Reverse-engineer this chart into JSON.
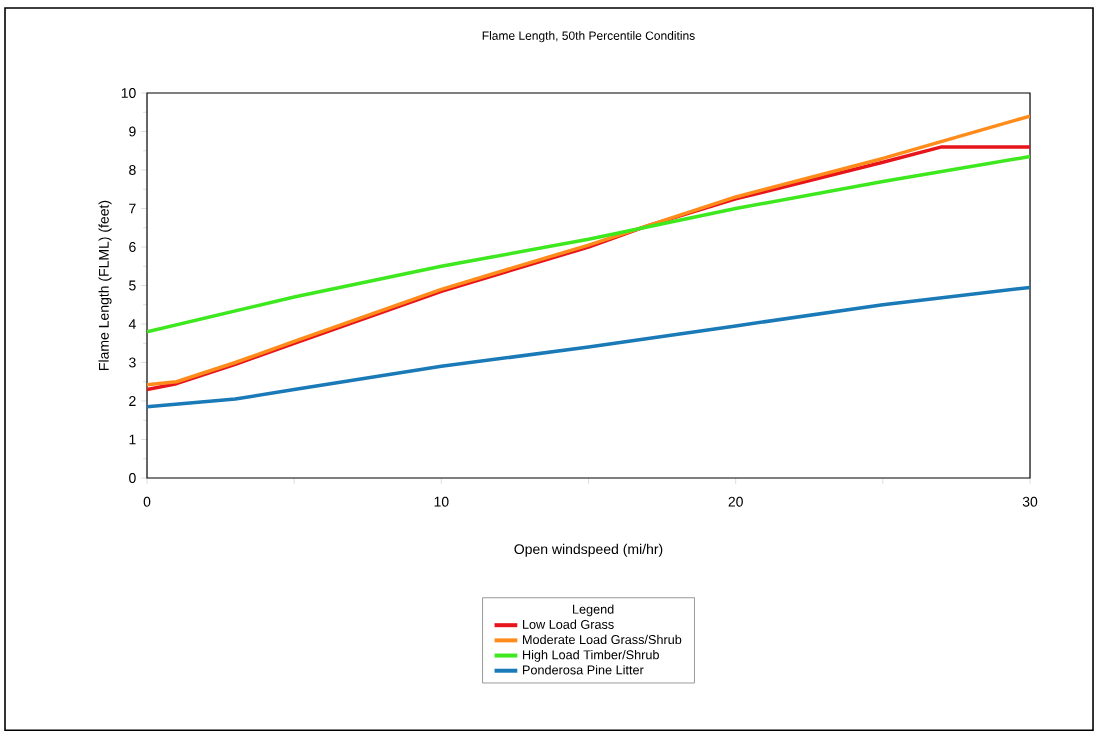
{
  "chart_data": {
    "type": "line",
    "title": "Flame Length, 50th Percentile Conditins",
    "xlabel": "Open windspeed (mi/hr)",
    "ylabel": "Flame Length (FLML) (feet)",
    "legend_title": "Legend",
    "xlim": [
      0,
      30
    ],
    "xticks": [
      0,
      {
        "value": 5,
        "label": null
      },
      10,
      {
        "value": 15,
        "label": null
      },
      20,
      {
        "value": 25,
        "label": null
      },
      30
    ],
    "ylim": [
      0,
      10
    ],
    "yticks": [
      0,
      1,
      2,
      3,
      4,
      5,
      6,
      7,
      8,
      9,
      10
    ],
    "grid": false,
    "legend": "bottom",
    "marker": "none",
    "line_style": "solid",
    "series": [
      {
        "name": "Low Load Grass",
        "color": "#e8141b",
        "x": [
          0,
          1,
          3,
          5,
          10,
          15,
          17,
          20,
          25,
          27,
          30
        ],
        "values": [
          2.3,
          2.45,
          2.95,
          3.5,
          4.85,
          6.0,
          6.55,
          7.25,
          8.2,
          8.6,
          8.6
        ]
      },
      {
        "name": "Moderate Load Grass/Shrub",
        "color": "#ff8c1a",
        "x": [
          0,
          1,
          3,
          5,
          10,
          15,
          20,
          25,
          30
        ],
        "values": [
          2.42,
          2.5,
          3.0,
          3.55,
          4.9,
          6.05,
          7.3,
          8.3,
          9.4
        ]
      },
      {
        "name": "High Load Timber/Shrub",
        "color": "#3ee81e",
        "x": [
          0,
          5,
          10,
          15,
          20,
          25,
          30
        ],
        "values": [
          3.8,
          4.7,
          5.5,
          6.2,
          7.0,
          7.7,
          8.35
        ]
      },
      {
        "name": "Ponderosa Pine Litter",
        "color": "#1a7ab8",
        "x": [
          0,
          3,
          5,
          10,
          15,
          20,
          25,
          30
        ],
        "values": [
          1.85,
          2.05,
          2.3,
          2.9,
          3.4,
          3.95,
          4.5,
          4.95
        ]
      }
    ]
  }
}
